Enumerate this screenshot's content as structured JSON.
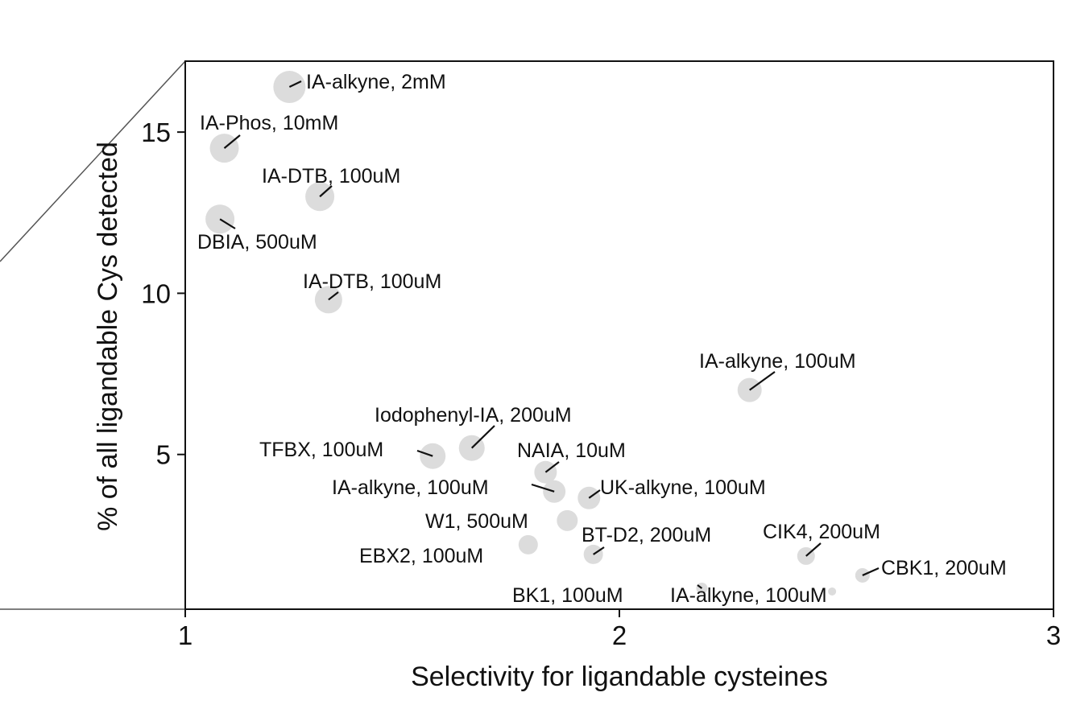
{
  "chart_data": {
    "type": "scatter",
    "title": "",
    "xlabel": "Selectivity for ligandable cysteines",
    "ylabel": "% of all ligandable Cys detected",
    "xlim": [
      1,
      3
    ],
    "ylim": [
      0.2,
      17.2
    ],
    "xticks": [
      1,
      2,
      3
    ],
    "yticks": [
      5,
      10,
      15
    ],
    "grid": false,
    "legend": "none",
    "point_color": "#dcdcdc",
    "points": [
      {
        "label": "IA-alkyne, 2mM",
        "x": 1.24,
        "y": 16.4,
        "size": 40
      },
      {
        "label": "IA-Phos, 10mM",
        "x": 1.09,
        "y": 14.5,
        "size": 36
      },
      {
        "label": "IA-DTB, 100uM",
        "x": 1.31,
        "y": 13.0,
        "size": 36
      },
      {
        "label": "DBIA, 500uM",
        "x": 1.08,
        "y": 12.3,
        "size": 36
      },
      {
        "label": "IA-DTB, 100uM",
        "x": 1.33,
        "y": 9.8,
        "size": 34
      },
      {
        "label": "IA-alkyne, 100uM",
        "x": 2.3,
        "y": 7.0,
        "size": 30
      },
      {
        "label": "Iodophenyl-IA, 200uM",
        "x": 1.66,
        "y": 5.2,
        "size": 32
      },
      {
        "label": "TFBX, 100uM",
        "x": 1.57,
        "y": 4.95,
        "size": 32
      },
      {
        "label": "NAIA, 10uM",
        "x": 1.83,
        "y": 4.45,
        "size": 28
      },
      {
        "label": "IA-alkyne, 100uM",
        "x": 1.85,
        "y": 3.85,
        "size": 28
      },
      {
        "label": "UK-alkyne, 100uM",
        "x": 1.93,
        "y": 3.65,
        "size": 28
      },
      {
        "label": "W1, 500uM",
        "x": 1.88,
        "y": 2.95,
        "size": 26
      },
      {
        "label": "EBX2, 100uM",
        "x": 1.79,
        "y": 2.2,
        "size": 24
      },
      {
        "label": "BT-D2, 200uM",
        "x": 1.94,
        "y": 1.9,
        "size": 24
      },
      {
        "label": "CIK4, 200uM",
        "x": 2.43,
        "y": 1.85,
        "size": 22
      },
      {
        "label": "CBK1, 200uM",
        "x": 2.56,
        "y": 1.25,
        "size": 18
      },
      {
        "label": "BK1, 100uM",
        "x": 2.19,
        "y": 0.85,
        "size": 14
      },
      {
        "label": "IA-alkyne, 100uM",
        "x": 2.49,
        "y": 0.75,
        "size": 10
      }
    ]
  }
}
